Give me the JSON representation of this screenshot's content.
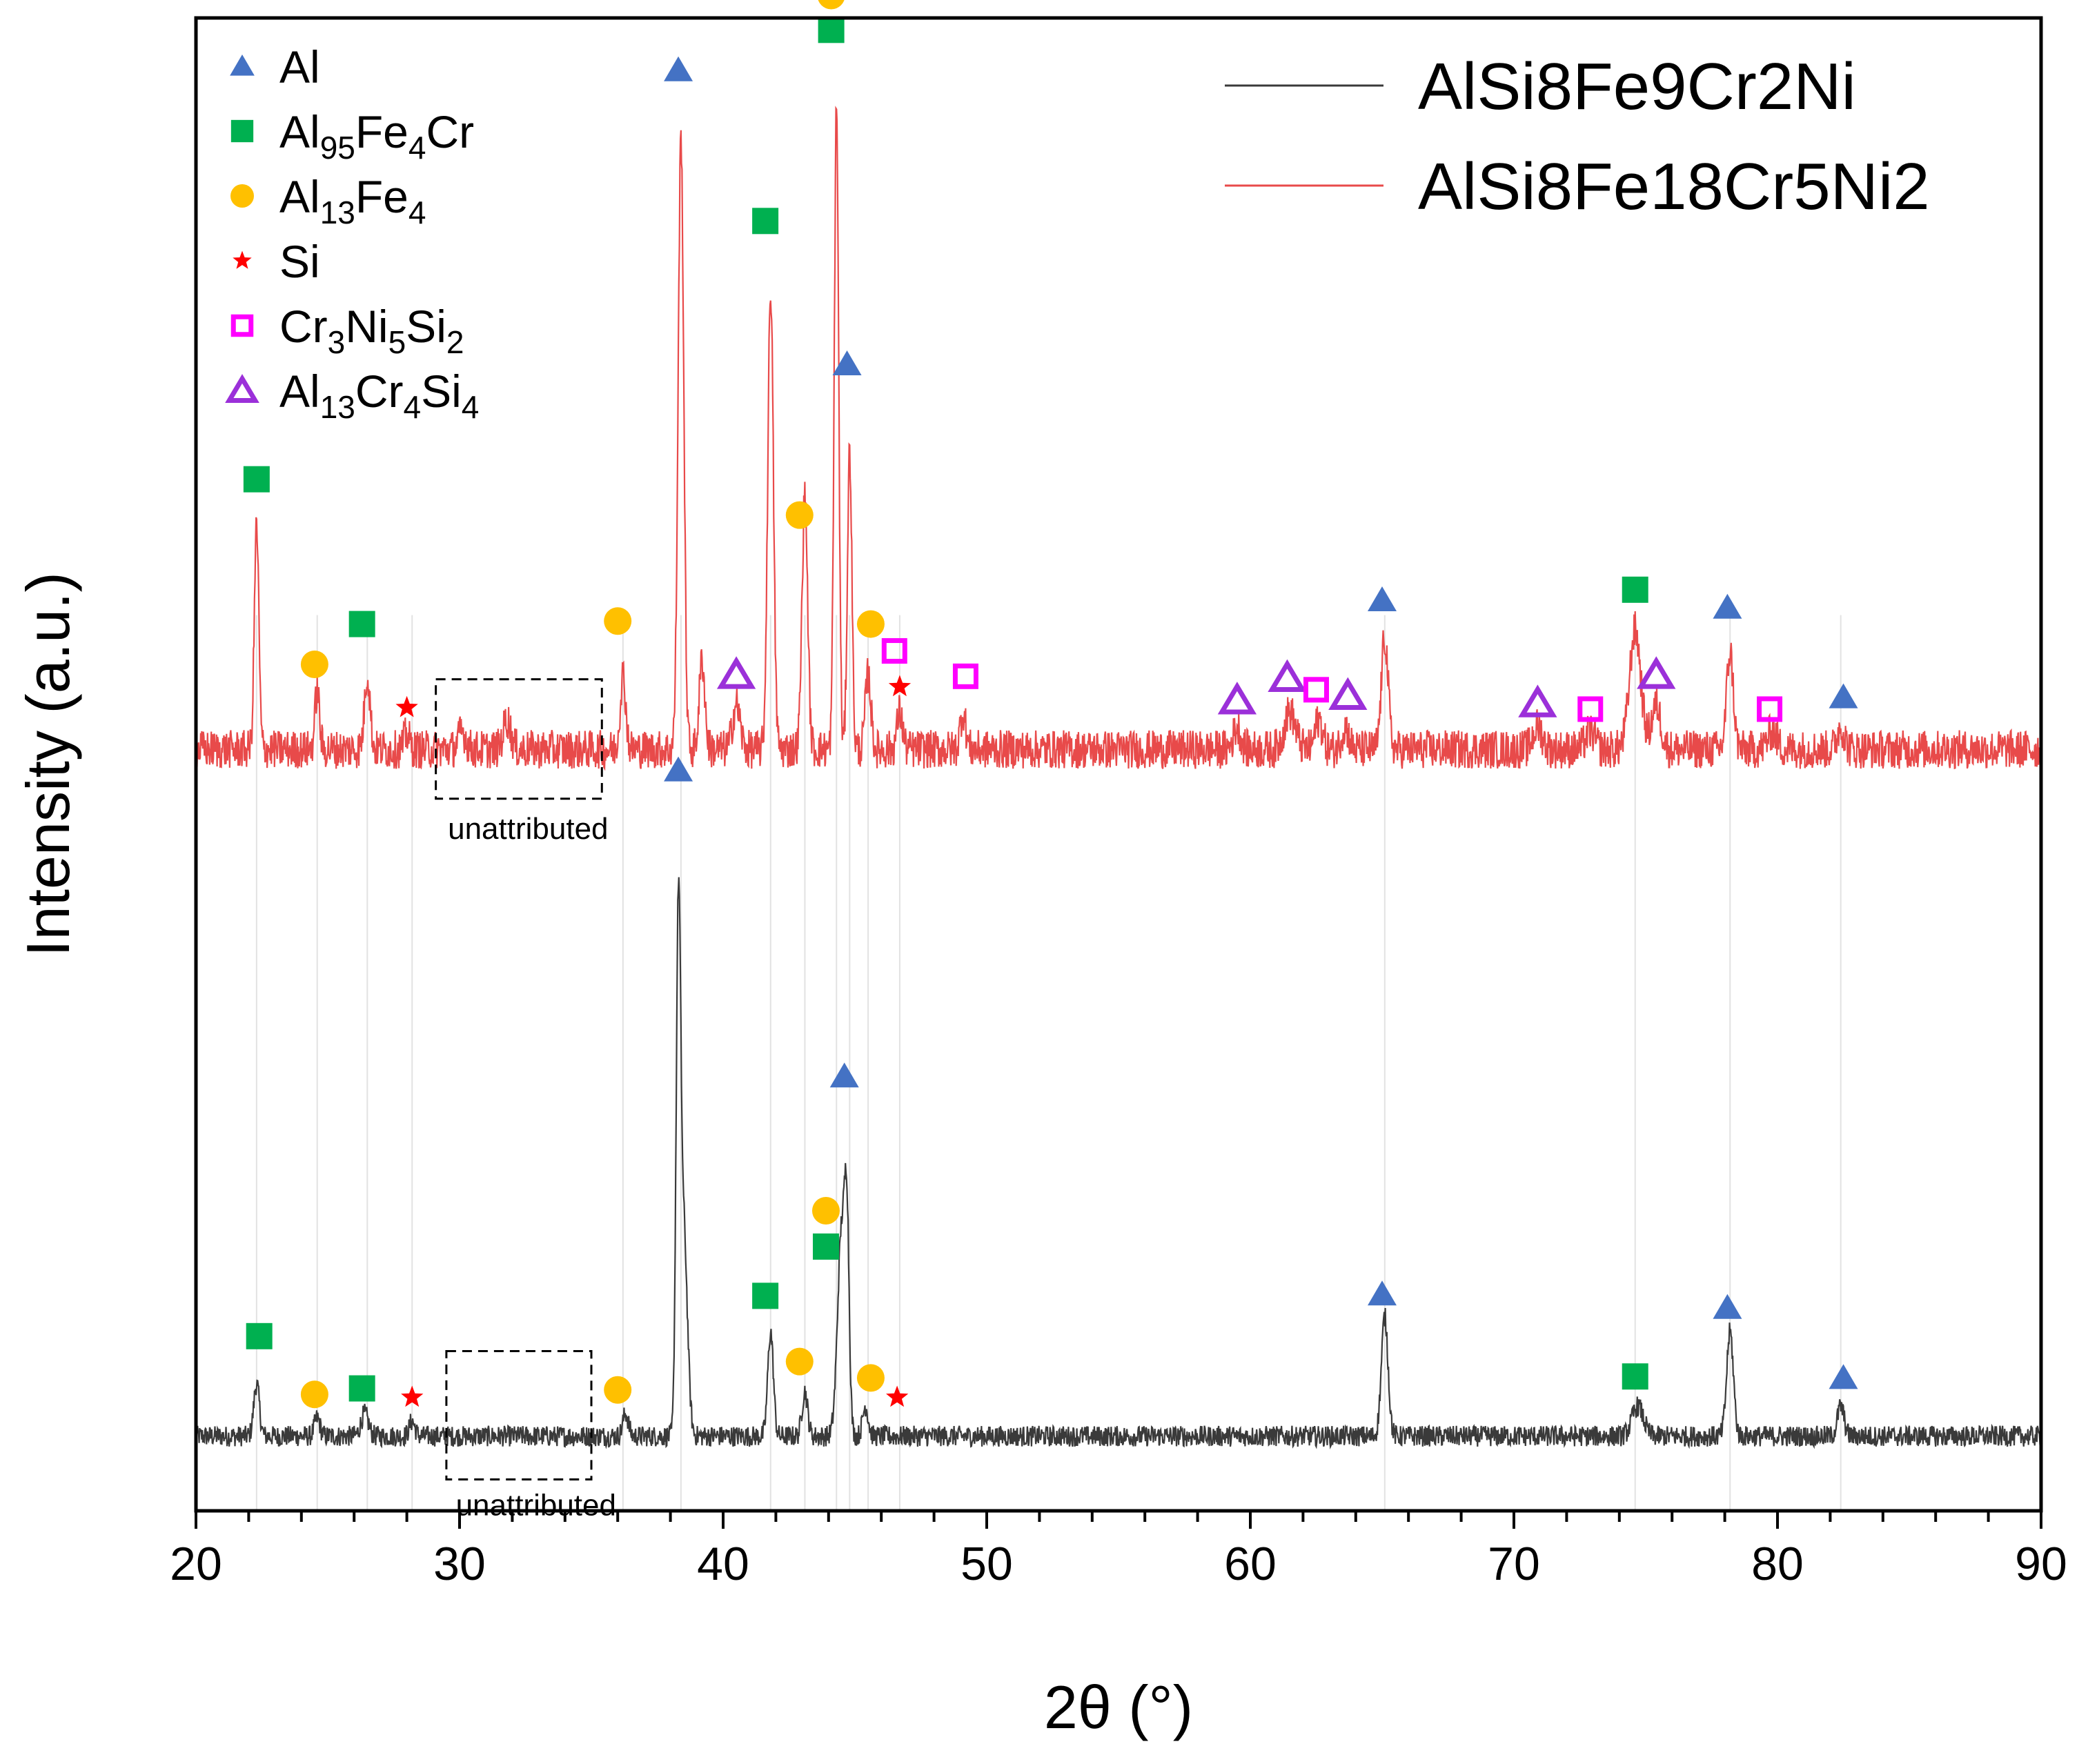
{
  "chart_data": {
    "type": "line",
    "title": "",
    "xlabel": "2θ (°)",
    "ylabel": "Intensity (a.u.)",
    "xlim": [
      20,
      90
    ],
    "ylim": [
      0,
      100
    ],
    "x_ticks": [
      "20",
      "30",
      "40",
      "50",
      "60",
      "70",
      "80",
      "90"
    ],
    "y_ticks": [],
    "grid": false,
    "legend_position": "top-right",
    "series": [
      {
        "name": "AlSi8Fe9Cr2Ni",
        "color": "#3a3a3a",
        "baseline": 5,
        "noise": 0.7,
        "peaks": [
          {
            "x": 22.3,
            "h": 3.5,
            "w": 0.15
          },
          {
            "x": 24.6,
            "h": 1.2,
            "w": 0.15
          },
          {
            "x": 26.4,
            "h": 1.5,
            "w": 0.2
          },
          {
            "x": 28.2,
            "h": 1.0,
            "w": 0.15
          },
          {
            "x": 36.3,
            "h": 1.5,
            "w": 0.15
          },
          {
            "x": 38.3,
            "h": 32.0,
            "w": 0.12
          },
          {
            "x": 38.5,
            "h": 14.0,
            "w": 0.2
          },
          {
            "x": 41.8,
            "h": 7.0,
            "w": 0.15
          },
          {
            "x": 43.1,
            "h": 3.0,
            "w": 0.15
          },
          {
            "x": 44.5,
            "h": 14.0,
            "w": 0.22
          },
          {
            "x": 44.7,
            "h": 11.0,
            "w": 0.12
          },
          {
            "x": 45.4,
            "h": 2.0,
            "w": 0.15
          },
          {
            "x": 65.1,
            "h": 8.0,
            "w": 0.18
          },
          {
            "x": 74.7,
            "h": 2.0,
            "w": 0.3
          },
          {
            "x": 78.2,
            "h": 7.0,
            "w": 0.18
          },
          {
            "x": 82.4,
            "h": 2.0,
            "w": 0.18
          }
        ]
      },
      {
        "name": "AlSi8Fe18Cr5Ni2",
        "color": "#e84a4a",
        "baseline": 51,
        "noise": 1.3,
        "peaks": [
          {
            "x": 22.3,
            "h": 15.0,
            "w": 0.12
          },
          {
            "x": 24.6,
            "h": 4.0,
            "w": 0.12
          },
          {
            "x": 26.5,
            "h": 5.0,
            "w": 0.15
          },
          {
            "x": 28.0,
            "h": 1.0,
            "w": 0.15
          },
          {
            "x": 30.1,
            "h": 1.2,
            "w": 0.2
          },
          {
            "x": 31.8,
            "h": 2.0,
            "w": 0.2
          },
          {
            "x": 36.2,
            "h": 5.0,
            "w": 0.15
          },
          {
            "x": 38.4,
            "h": 41.0,
            "w": 0.15
          },
          {
            "x": 39.2,
            "h": 6.0,
            "w": 0.15
          },
          {
            "x": 40.5,
            "h": 3.0,
            "w": 0.2
          },
          {
            "x": 41.8,
            "h": 31.0,
            "w": 0.15
          },
          {
            "x": 43.1,
            "h": 17.0,
            "w": 0.15
          },
          {
            "x": 44.3,
            "h": 43.0,
            "w": 0.12
          },
          {
            "x": 44.8,
            "h": 20.0,
            "w": 0.12
          },
          {
            "x": 45.5,
            "h": 5.0,
            "w": 0.15
          },
          {
            "x": 46.7,
            "h": 2.5,
            "w": 0.15
          },
          {
            "x": 49.1,
            "h": 2.5,
            "w": 0.15
          },
          {
            "x": 59.5,
            "h": 1.5,
            "w": 0.2
          },
          {
            "x": 61.5,
            "h": 2.5,
            "w": 0.3
          },
          {
            "x": 62.6,
            "h": 2.0,
            "w": 0.2
          },
          {
            "x": 63.6,
            "h": 1.5,
            "w": 0.2
          },
          {
            "x": 65.1,
            "h": 7.5,
            "w": 0.18
          },
          {
            "x": 70.9,
            "h": 1.5,
            "w": 0.25
          },
          {
            "x": 72.9,
            "h": 1.2,
            "w": 0.25
          },
          {
            "x": 74.6,
            "h": 8.0,
            "w": 0.3
          },
          {
            "x": 75.4,
            "h": 3.0,
            "w": 0.25
          },
          {
            "x": 78.2,
            "h": 6.5,
            "w": 0.18
          },
          {
            "x": 79.8,
            "h": 1.2,
            "w": 0.25
          },
          {
            "x": 82.4,
            "h": 1.5,
            "w": 0.2
          }
        ]
      }
    ],
    "guide_lines_x": [
      22.3,
      24.6,
      26.5,
      28.2,
      36.2,
      38.4,
      41.8,
      43.1,
      44.3,
      44.8,
      45.5,
      46.7,
      65.1,
      74.6,
      78.2,
      82.4
    ],
    "legend": [
      {
        "symbol": "filled-triangle",
        "color": "#4472c4",
        "main": "Al",
        "parts": [
          [
            "Al",
            false
          ]
        ]
      },
      {
        "symbol": "filled-square",
        "color": "#00b050",
        "main": "Al95Fe4Cr",
        "parts": [
          [
            "Al",
            false
          ],
          [
            "95",
            true
          ],
          [
            "Fe",
            false
          ],
          [
            "4",
            true
          ],
          [
            "Cr",
            false
          ]
        ]
      },
      {
        "symbol": "filled-circle",
        "color": "#ffc000",
        "main": "Al13Fe4",
        "parts": [
          [
            "Al",
            false
          ],
          [
            "13",
            true
          ],
          [
            "Fe",
            false
          ],
          [
            "4",
            true
          ]
        ]
      },
      {
        "symbol": "star",
        "color": "#ff0000",
        "main": "Si",
        "parts": [
          [
            "Si",
            false
          ]
        ]
      },
      {
        "symbol": "open-square",
        "color": "#ff00ff",
        "main": "Cr3Ni5Si2",
        "parts": [
          [
            "Cr",
            false
          ],
          [
            "3",
            true
          ],
          [
            "Ni",
            false
          ],
          [
            "5",
            true
          ],
          [
            "Si",
            false
          ],
          [
            "2",
            true
          ]
        ]
      },
      {
        "symbol": "open-triangle",
        "color": "#9b30d9",
        "main": "Al13Cr4Si4",
        "parts": [
          [
            "Al",
            false
          ],
          [
            "13",
            true
          ],
          [
            "Cr",
            false
          ],
          [
            "4",
            true
          ],
          [
            "Si",
            false
          ],
          [
            "4",
            true
          ]
        ]
      }
    ],
    "series_legend": [
      {
        "label": "AlSi8Fe9Cr2Ni",
        "color": "#3a3a3a"
      },
      {
        "label": "AlSi8Fe18Cr5Ni2",
        "color": "#e84a4a"
      }
    ],
    "markers": [
      {
        "s": "filled-triangle",
        "x": 38.3,
        "y": 96.5
      },
      {
        "s": "filled-square",
        "x": 44.1,
        "y": 99.2
      },
      {
        "s": "filled-circle",
        "x": 44.1,
        "y": 101.5
      },
      {
        "s": "filled-square",
        "x": 41.6,
        "y": 86.4
      },
      {
        "s": "filled-triangle",
        "x": 44.7,
        "y": 76.8
      },
      {
        "s": "filled-square",
        "x": 22.3,
        "y": 69.1
      },
      {
        "s": "filled-circle",
        "x": 42.9,
        "y": 66.7
      },
      {
        "s": "filled-circle",
        "x": 36.0,
        "y": 59.6
      },
      {
        "s": "filled-circle",
        "x": 45.6,
        "y": 59.4
      },
      {
        "s": "filled-square",
        "x": 26.3,
        "y": 59.4
      },
      {
        "s": "filled-circle",
        "x": 24.5,
        "y": 56.7
      },
      {
        "s": "star",
        "x": 28.0,
        "y": 53.8
      },
      {
        "s": "open-square",
        "x": 46.5,
        "y": 57.6
      },
      {
        "s": "open-square",
        "x": 49.2,
        "y": 55.9
      },
      {
        "s": "open-triangle",
        "x": 40.5,
        "y": 56.0
      },
      {
        "s": "star",
        "x": 46.7,
        "y": 55.2
      },
      {
        "s": "filled-triangle",
        "x": 65.0,
        "y": 61.0
      },
      {
        "s": "filled-square",
        "x": 74.6,
        "y": 61.7
      },
      {
        "s": "filled-triangle",
        "x": 78.1,
        "y": 60.5
      },
      {
        "s": "filled-triangle",
        "x": 82.5,
        "y": 54.5
      },
      {
        "s": "open-triangle",
        "x": 59.5,
        "y": 54.3
      },
      {
        "s": "open-triangle",
        "x": 61.4,
        "y": 55.8
      },
      {
        "s": "open-square",
        "x": 62.5,
        "y": 55.0
      },
      {
        "s": "open-triangle",
        "x": 63.7,
        "y": 54.6
      },
      {
        "s": "open-triangle",
        "x": 70.9,
        "y": 54.1
      },
      {
        "s": "open-square",
        "x": 72.9,
        "y": 53.7
      },
      {
        "s": "open-triangle",
        "x": 75.4,
        "y": 56.0
      },
      {
        "s": "open-square",
        "x": 79.7,
        "y": 53.7
      },
      {
        "s": "filled-triangle",
        "x": 38.3,
        "y": 49.6
      },
      {
        "s": "filled-triangle",
        "x": 44.6,
        "y": 29.1
      },
      {
        "s": "filled-circle",
        "x": 43.9,
        "y": 20.1
      },
      {
        "s": "filled-square",
        "x": 43.9,
        "y": 17.7
      },
      {
        "s": "filled-square",
        "x": 41.6,
        "y": 14.4
      },
      {
        "s": "filled-triangle",
        "x": 65.0,
        "y": 14.5
      },
      {
        "s": "filled-triangle",
        "x": 78.1,
        "y": 13.6
      },
      {
        "s": "filled-square",
        "x": 22.4,
        "y": 11.7
      },
      {
        "s": "filled-circle",
        "x": 42.9,
        "y": 10.0
      },
      {
        "s": "filled-circle",
        "x": 45.6,
        "y": 8.9
      },
      {
        "s": "filled-square",
        "x": 74.6,
        "y": 9.0
      },
      {
        "s": "filled-triangle",
        "x": 82.5,
        "y": 8.9
      },
      {
        "s": "filled-circle",
        "x": 24.5,
        "y": 7.8
      },
      {
        "s": "filled-square",
        "x": 26.3,
        "y": 8.2
      },
      {
        "s": "filled-circle",
        "x": 36.0,
        "y": 8.1
      },
      {
        "s": "star",
        "x": 28.2,
        "y": 7.6
      },
      {
        "s": "star",
        "x": 46.6,
        "y": 7.6
      }
    ],
    "annotations": [
      {
        "text": "unattributed",
        "box_x": [
          29.1,
          35.4
        ],
        "box_y": [
          47.7,
          55.7
        ],
        "text_x": 32.6,
        "text_y": 45.0
      },
      {
        "text": "unattributed",
        "box_x": [
          29.5,
          35.0
        ],
        "box_y": [
          2.1,
          10.7
        ],
        "text_x": 32.9,
        "text_y": -0.3
      }
    ]
  }
}
